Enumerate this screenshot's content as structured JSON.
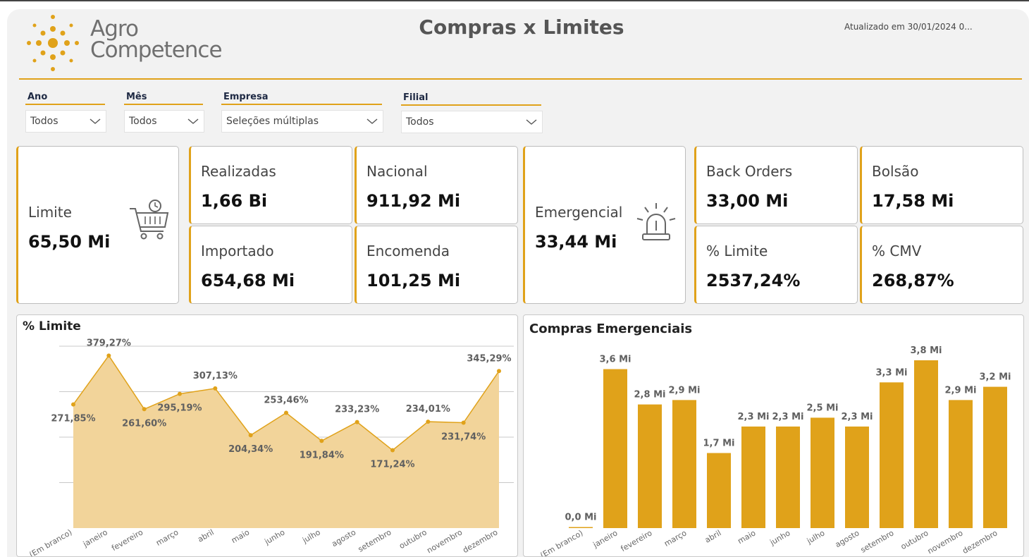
{
  "header": {
    "logo_line1": "Agro",
    "logo_line2": "Competence",
    "title": "Compras x Limites",
    "updated": "Atualizado em 30/01/2024 0..."
  },
  "filters": [
    {
      "label": "Ano",
      "value": "Todos"
    },
    {
      "label": "Mês",
      "value": "Todos"
    },
    {
      "label": "Empresa",
      "value": "Seleções múltiplas"
    },
    {
      "label": "Filial",
      "value": "Todos"
    }
  ],
  "cards": {
    "limite": {
      "label": "Limite",
      "value": "65,50 Mi",
      "icon": "shopping-cart-clock-icon"
    },
    "realizadas": {
      "label": "Realizadas",
      "value": "1,66 Bi"
    },
    "nacional": {
      "label": "Nacional",
      "value": "911,92 Mi"
    },
    "importado": {
      "label": "Importado",
      "value": "654,68 Mi"
    },
    "encomenda": {
      "label": "Encomenda",
      "value": "101,25 Mi"
    },
    "emergencial": {
      "label": "Emergencial",
      "value": "33,44 Mi",
      "icon": "alarm-siren-icon"
    },
    "back_orders": {
      "label": "Back Orders",
      "value": "33,00 Mi"
    },
    "bolsao": {
      "label": "Bolsão",
      "value": "17,58 Mi"
    },
    "pct_limite": {
      "label": "% Limite",
      "value": "2537,24%"
    },
    "pct_cmv": {
      "label": "% CMV",
      "value": "268,87%"
    }
  },
  "colors": {
    "accent": "#e0a21a",
    "area_fill": "#f2d49a",
    "bar": "#e0a21a"
  },
  "chart_data": [
    {
      "type": "area",
      "title": "% Limite",
      "categories": [
        "(Em branco)",
        "janeiro",
        "fevereiro",
        "março",
        "abril",
        "maio",
        "junho",
        "julho",
        "agosto",
        "setembro",
        "outubro",
        "novembro",
        "dezembro"
      ],
      "values": [
        271.85,
        379.27,
        261.6,
        295.19,
        307.13,
        204.34,
        253.46,
        191.84,
        233.23,
        171.24,
        234.01,
        231.74,
        345.29
      ],
      "data_labels": [
        "271,85%",
        "379,27%",
        "261,60%",
        "295,19%",
        "307,13%",
        "204,34%",
        "253,46%",
        "191,84%",
        "233,23%",
        "171,24%",
        "234,01%",
        "231,74%",
        "345,29%"
      ],
      "ylim": [
        0,
        400
      ],
      "grid": true,
      "legend": "none"
    },
    {
      "type": "bar",
      "title": "Compras Emergenciais",
      "categories": [
        "(Em branco)",
        "janeiro",
        "fevereiro",
        "março",
        "abril",
        "maio",
        "junho",
        "julho",
        "agosto",
        "setembro",
        "outubro",
        "novembro",
        "dezembro"
      ],
      "values": [
        0.0,
        3.6,
        2.8,
        2.9,
        1.7,
        2.3,
        2.3,
        2.5,
        2.3,
        3.3,
        3.8,
        2.9,
        3.2
      ],
      "data_labels": [
        "0,0 Mi",
        "3,6 Mi",
        "2,8 Mi",
        "2,9 Mi",
        "1,7 Mi",
        "2,3 Mi",
        "2,3 Mi",
        "2,5 Mi",
        "2,3 Mi",
        "3,3 Mi",
        "3,8 Mi",
        "2,9 Mi",
        "3,2 Mi"
      ],
      "ylim": [
        0,
        3.8
      ],
      "grid": false,
      "legend": "none"
    }
  ]
}
